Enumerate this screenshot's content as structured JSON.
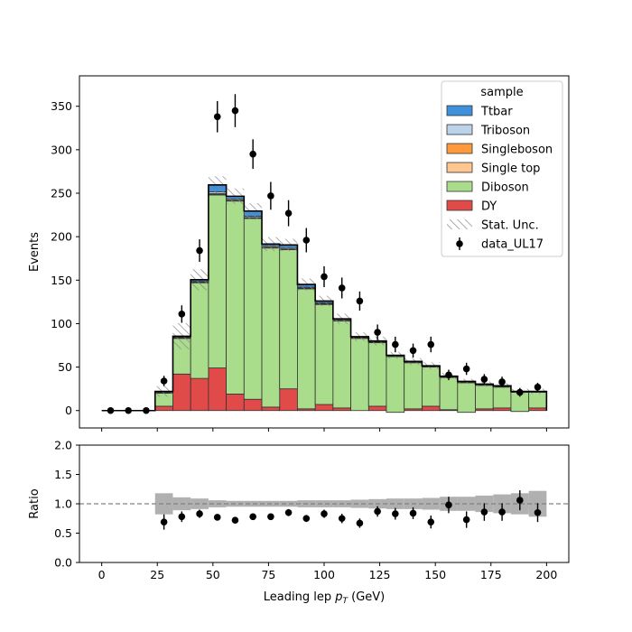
{
  "colors": {
    "Ttbar": "#3f90da",
    "Triboson": "#bdd3ea",
    "Singleboson": "#ff9a3c",
    "Single top": "#ffc68f",
    "Diboson": "#a9dc8b",
    "DY": "#e04b4a",
    "unc": "#888888",
    "ratio_unc": "#b0b0b0",
    "data": "#000000"
  },
  "chart_data": [
    {
      "type": "area",
      "subtype": "stacked-step-histogram",
      "ylabel": "Events",
      "xlabel": "",
      "xlim": [
        -10,
        210
      ],
      "ylim": [
        -20,
        385
      ],
      "xticks": [
        0,
        25,
        50,
        75,
        100,
        125,
        150,
        175,
        200
      ],
      "yticks": [
        0,
        50,
        100,
        150,
        200,
        250,
        300,
        350
      ],
      "bin_edges": [
        0,
        8,
        16,
        24,
        32,
        40,
        48,
        56,
        64,
        72,
        80,
        88,
        96,
        104,
        112,
        120,
        128,
        136,
        144,
        152,
        160,
        168,
        176,
        184,
        192,
        200
      ],
      "legend_title": "sample",
      "legend_position": "top-right",
      "legend_labels": [
        "Ttbar",
        "Triboson",
        "Singleboson",
        "Single top",
        "Diboson",
        "DY",
        "Stat. Unc.",
        "data_UL17"
      ],
      "series": [
        {
          "name": "DY",
          "values": [
            0,
            0,
            0,
            5,
            42,
            37,
            49,
            19,
            13,
            4,
            25,
            2,
            7,
            3,
            0,
            5,
            -2,
            2,
            5,
            1,
            -2,
            2,
            3,
            -1,
            3
          ]
        },
        {
          "name": "Diboson",
          "values": [
            0,
            0,
            0,
            15,
            41,
            110,
            199,
            222,
            208,
            183,
            160,
            138,
            115,
            100,
            83,
            73,
            64,
            53,
            45,
            37,
            34,
            27,
            24,
            22,
            18
          ]
        },
        {
          "name": "Single top",
          "values": [
            0,
            0,
            0,
            0.5,
            0.5,
            0.5,
            1,
            0.5,
            0.5,
            0.5,
            0.5,
            0.5,
            0.5,
            0.5,
            0.5,
            0.5,
            0,
            0,
            0,
            0,
            0,
            0,
            0,
            0,
            0
          ]
        },
        {
          "name": "Singleboson",
          "values": [
            0,
            0,
            0,
            0,
            0.5,
            0.5,
            0.5,
            0.5,
            0.5,
            0.5,
            0.5,
            0.5,
            0.5,
            0,
            0,
            0,
            0,
            0,
            0,
            0,
            0,
            0,
            0,
            0,
            0
          ]
        },
        {
          "name": "Triboson",
          "values": [
            0,
            0,
            0,
            0.5,
            0.5,
            0.5,
            2,
            1.5,
            1.5,
            1.5,
            1.5,
            1,
            1,
            1,
            0.5,
            0.5,
            0.5,
            0.5,
            0.5,
            0.5,
            0.5,
            0.5,
            0.5,
            0,
            0
          ]
        },
        {
          "name": "Ttbar",
          "values": [
            0,
            0,
            0,
            1,
            1,
            2,
            8,
            3,
            6,
            2,
            3,
            3,
            2,
            1,
            1,
            1,
            1,
            1,
            1,
            1,
            1,
            1,
            1,
            1,
            1
          ]
        }
      ],
      "stat_unc": [
        0,
        0,
        0,
        6,
        15,
        12,
        10,
        9,
        9,
        8,
        7,
        7,
        6,
        6,
        5,
        5,
        4,
        4,
        4,
        4,
        3,
        3,
        3,
        3,
        3
      ],
      "data": {
        "name": "data_UL17",
        "x": [
          4,
          12,
          20,
          28,
          36,
          44,
          52,
          60,
          68,
          76,
          84,
          92,
          100,
          108,
          116,
          124,
          132,
          140,
          148,
          156,
          164,
          172,
          180,
          188,
          196
        ],
        "y": [
          0,
          0,
          0,
          34,
          111,
          184,
          338,
          345,
          295,
          247,
          227,
          196,
          154,
          141,
          126,
          90,
          76,
          69,
          76,
          41,
          48,
          36,
          33,
          21,
          27
        ],
        "yerr": [
          0,
          0,
          0,
          6,
          10,
          13,
          18,
          19,
          17,
          16,
          15,
          14,
          12,
          12,
          11,
          9,
          9,
          8,
          9,
          6,
          7,
          6,
          6,
          5,
          5
        ]
      }
    },
    {
      "type": "scatter",
      "subtype": "ratio-panel",
      "xlabel": "Leading lep p_T (GeV)",
      "xlabel_main": "Leading lep ",
      "xlabel_sub": "T",
      "xlabel_unit": " (GeV)",
      "ylabel": "Ratio",
      "xlim": [
        -10,
        210
      ],
      "ylim": [
        0,
        2
      ],
      "xticks": [
        0,
        25,
        50,
        75,
        100,
        125,
        150,
        175,
        200
      ],
      "yticks": [
        0.0,
        0.5,
        1.0,
        1.5,
        2.0
      ],
      "reference_line": 1.0,
      "bin_edges": [
        24,
        32,
        40,
        48,
        56,
        64,
        72,
        80,
        88,
        96,
        104,
        112,
        120,
        128,
        136,
        144,
        152,
        160,
        168,
        176,
        184,
        192,
        200
      ],
      "unc_band": [
        0.18,
        0.11,
        0.09,
        0.06,
        0.05,
        0.05,
        0.05,
        0.05,
        0.06,
        0.06,
        0.06,
        0.07,
        0.08,
        0.09,
        0.09,
        0.1,
        0.12,
        0.12,
        0.14,
        0.16,
        0.18,
        0.22,
        0.2
      ],
      "x": [
        28,
        36,
        44,
        52,
        60,
        68,
        76,
        84,
        92,
        100,
        108,
        116,
        124,
        132,
        140,
        148,
        156,
        164,
        172,
        180,
        188,
        196
      ],
      "y": [
        0.69,
        0.78,
        0.83,
        0.77,
        0.72,
        0.78,
        0.78,
        0.85,
        0.75,
        0.83,
        0.75,
        0.67,
        0.87,
        0.83,
        0.84,
        0.69,
        0.98,
        0.73,
        0.86,
        0.86,
        1.06,
        0.85
      ],
      "yerr": [
        0.13,
        0.09,
        0.07,
        0.05,
        0.05,
        0.05,
        0.05,
        0.06,
        0.06,
        0.07,
        0.08,
        0.08,
        0.09,
        0.1,
        0.1,
        0.11,
        0.14,
        0.14,
        0.15,
        0.15,
        0.17,
        0.16
      ]
    }
  ]
}
